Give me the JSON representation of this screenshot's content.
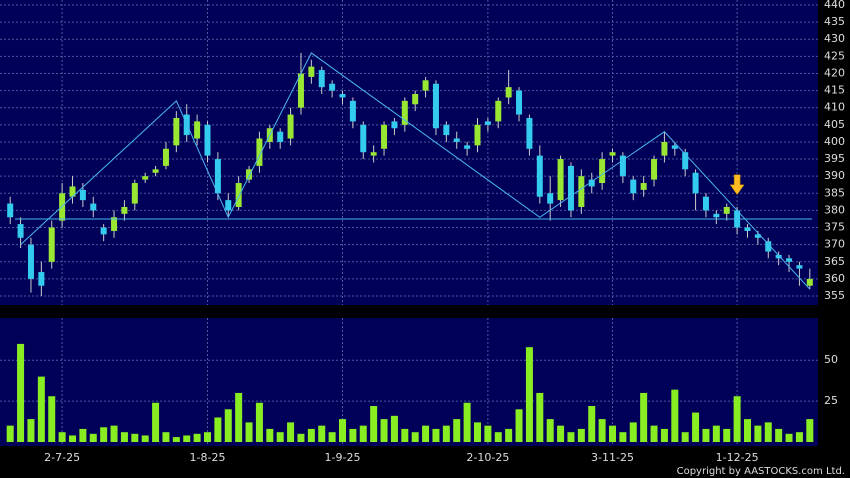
{
  "chart_data": {
    "type": "candlestick",
    "xlim": [
      -0.5,
      77.5
    ],
    "xticks": [
      {
        "value": 5,
        "label": "2-7-25"
      },
      {
        "value": 19,
        "label": "1-8-25"
      },
      {
        "value": 32,
        "label": "1-9-25"
      },
      {
        "value": 46,
        "label": "2-10-25"
      },
      {
        "value": 58,
        "label": "3-11-25"
      },
      {
        "value": 70,
        "label": "1-12-25"
      }
    ],
    "ylim": [
      355,
      440
    ],
    "yticks": [
      355,
      360,
      365,
      370,
      375,
      380,
      385,
      390,
      395,
      400,
      405,
      410,
      415,
      420,
      425,
      430,
      435,
      440
    ],
    "open": [
      382,
      376,
      370,
      362,
      365,
      377,
      384,
      386,
      382,
      375,
      374,
      379,
      382,
      389,
      391,
      393,
      399,
      408,
      401,
      405,
      395,
      383,
      381,
      389,
      393,
      400,
      403,
      401,
      410,
      419,
      421,
      417,
      414,
      412,
      405,
      396,
      398,
      406,
      405,
      411,
      415,
      417,
      405,
      401,
      399,
      399,
      406,
      406,
      413,
      415,
      407,
      396,
      385,
      383,
      393,
      381,
      389,
      388,
      396,
      396,
      389,
      386,
      389,
      396,
      399,
      397,
      391,
      384,
      379,
      379,
      380,
      375,
      373,
      371,
      367,
      366,
      364,
      358
    ],
    "high": [
      384,
      378,
      372,
      365,
      377,
      388,
      390,
      388,
      384,
      376,
      380,
      383,
      389,
      391,
      393,
      400,
      409,
      411,
      408,
      406,
      397,
      385,
      390,
      393,
      403,
      405,
      404,
      410,
      426,
      424,
      422,
      418,
      415,
      413,
      406,
      399,
      406,
      407,
      413,
      415,
      419,
      418,
      406,
      403,
      400,
      407,
      407,
      413,
      421,
      416,
      408,
      399,
      390,
      396,
      394,
      392,
      391,
      397,
      398,
      397,
      390,
      390,
      396,
      403,
      400,
      398,
      392,
      385,
      380,
      382,
      381,
      376,
      374,
      372,
      368,
      367,
      365,
      363
    ],
    "low": [
      376,
      369,
      356,
      355,
      363,
      375,
      382,
      381,
      378,
      371,
      372,
      377,
      380,
      388,
      390,
      392,
      397,
      400,
      399,
      394,
      383,
      378,
      380,
      388,
      391,
      398,
      398,
      399,
      408,
      417,
      414,
      413,
      411,
      404,
      395,
      394,
      396,
      402,
      403,
      409,
      413,
      402,
      400,
      398,
      396,
      397,
      403,
      404,
      411,
      406,
      396,
      382,
      377,
      381,
      378,
      379,
      385,
      386,
      394,
      388,
      383,
      384,
      387,
      394,
      396,
      390,
      380,
      378,
      376,
      377,
      373,
      372,
      370,
      366,
      364,
      362,
      358,
      357
    ],
    "close": [
      378,
      372,
      360,
      358,
      375,
      385,
      387,
      383,
      380,
      373,
      378,
      381,
      388,
      390,
      392,
      398,
      407,
      402,
      406,
      396,
      385,
      380,
      388,
      392,
      401,
      404,
      400,
      408,
      420,
      422,
      416,
      415,
      413,
      406,
      397,
      397,
      405,
      404,
      412,
      414,
      418,
      404,
      402,
      400,
      398,
      405,
      405,
      412,
      416,
      408,
      398,
      384,
      382,
      395,
      380,
      390,
      387,
      395,
      397,
      390,
      385,
      388,
      395,
      400,
      398,
      392,
      385,
      380,
      378,
      381,
      375,
      374,
      372,
      368,
      366,
      365,
      363,
      360
    ],
    "up_color": "#99e633",
    "down_color": "#33ccee",
    "grid": true,
    "trend_line": {
      "x": [
        1,
        16,
        21,
        29,
        51,
        63,
        77
      ],
      "y": [
        370,
        412,
        378,
        426,
        378,
        403,
        357
      ]
    },
    "neckline": 377.5,
    "arrow": {
      "x": 70,
      "y": 384
    },
    "volume": {
      "values": [
        10,
        60,
        14,
        40,
        28,
        6,
        4,
        8,
        5,
        9,
        10,
        6,
        5,
        4,
        24,
        6,
        3,
        4,
        5,
        6,
        15,
        20,
        30,
        12,
        24,
        8,
        6,
        12,
        5,
        8,
        10,
        6,
        14,
        8,
        10,
        22,
        14,
        16,
        8,
        6,
        10,
        8,
        10,
        14,
        24,
        12,
        10,
        6,
        8,
        20,
        58,
        30,
        14,
        10,
        6,
        8,
        22,
        14,
        10,
        6,
        12,
        30,
        10,
        8,
        32,
        6,
        18,
        8,
        10,
        8,
        28,
        14,
        10,
        12,
        8,
        5,
        6,
        14
      ],
      "color": "#88ee22",
      "ylim": [
        0,
        74
      ],
      "yticks": [
        25,
        50
      ]
    },
    "copyright": "Copyright by AASTOCKS.com Ltd."
  }
}
